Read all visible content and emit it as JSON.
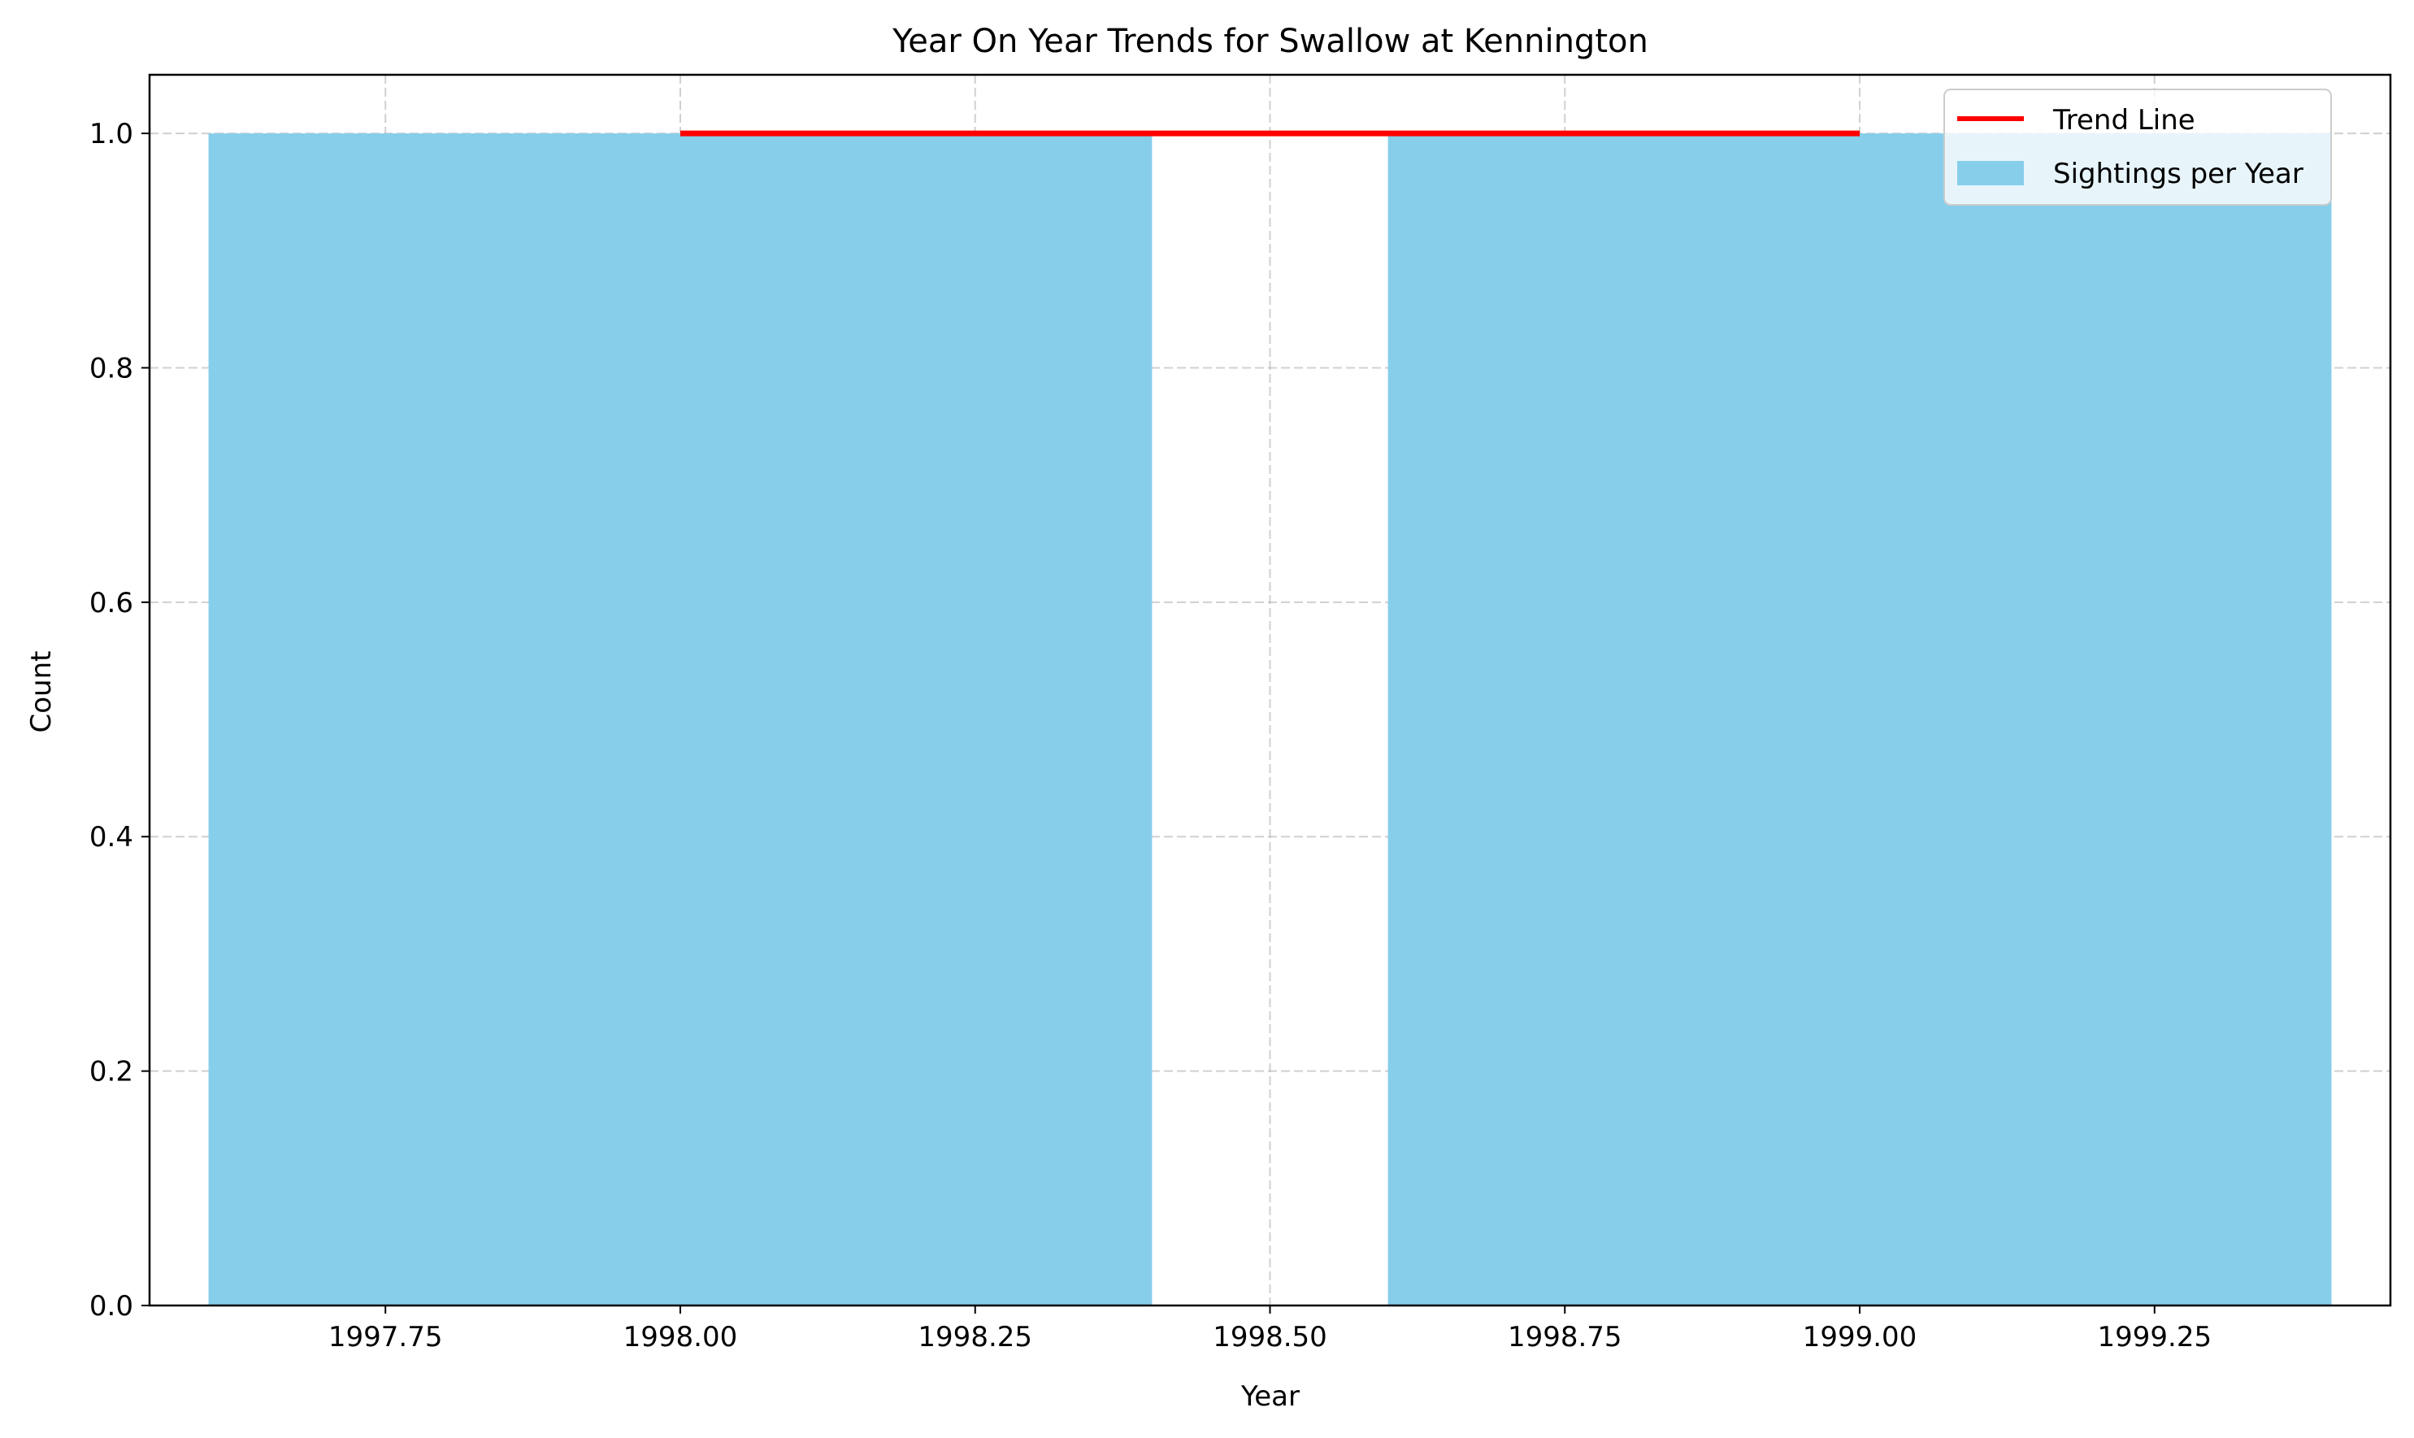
{
  "chart_data": {
    "type": "bar",
    "title": "Year On Year Trends for Swallow at Kennington",
    "xlabel": "Year",
    "ylabel": "Count",
    "xlim": [
      1997.55,
      1999.45
    ],
    "ylim": [
      0,
      1.05
    ],
    "xticks": [
      1997.75,
      1998.0,
      1998.25,
      1998.5,
      1998.75,
      1999.0,
      1999.25
    ],
    "xtick_labels": [
      "1997.75",
      "1998.00",
      "1998.25",
      "1998.50",
      "1998.75",
      "1999.00",
      "1999.25"
    ],
    "yticks": [
      0.0,
      0.2,
      0.4,
      0.6,
      0.8,
      1.0
    ],
    "ytick_labels": [
      "0.0",
      "0.2",
      "0.4",
      "0.6",
      "0.8",
      "1.0"
    ],
    "grid": true,
    "legend_position": "top-right",
    "bar_width": 0.8,
    "bars": {
      "name": "Sightings per Year",
      "color": "#87ceeb",
      "x": [
        1998,
        1999
      ],
      "values": [
        1,
        1
      ]
    },
    "trend": {
      "name": "Trend Line",
      "color": "#ff0000",
      "x": [
        1998,
        1999
      ],
      "values": [
        1.0,
        1.0
      ]
    }
  }
}
